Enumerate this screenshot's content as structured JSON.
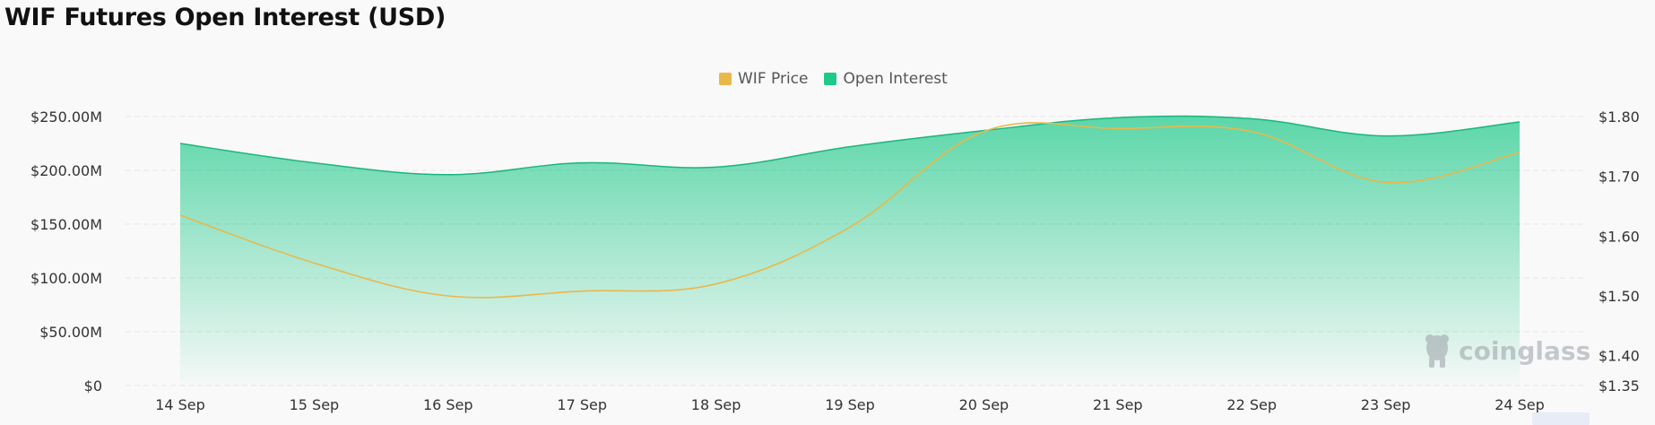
{
  "title": "WIF Futures Open Interest (USD)",
  "legend": [
    {
      "label": "WIF Price",
      "color": "#e8b84a"
    },
    {
      "label": "Open Interest",
      "color": "#1ec98a"
    }
  ],
  "watermark": "coinglass",
  "chart_data": {
    "type": "area",
    "title": "WIF Futures Open Interest (USD)",
    "x": [
      "14 Sep",
      "15 Sep",
      "16 Sep",
      "17 Sep",
      "18 Sep",
      "19 Sep",
      "20 Sep",
      "21 Sep",
      "22 Sep",
      "23 Sep",
      "24 Sep"
    ],
    "series": [
      {
        "name": "Open Interest",
        "axis": "left",
        "type": "area",
        "color": "#1ec98a",
        "values": [
          225000000,
          207000000,
          196000000,
          207000000,
          203000000,
          222000000,
          237000000,
          249000000,
          248000000,
          232000000,
          245000000
        ]
      },
      {
        "name": "WIF Price",
        "axis": "right",
        "type": "line",
        "color": "#e8b84a",
        "values": [
          1.635,
          1.555,
          1.5,
          1.508,
          1.52,
          1.615,
          1.775,
          1.78,
          1.775,
          1.69,
          1.74
        ]
      }
    ],
    "y_left": {
      "ylim": [
        0,
        250000000
      ],
      "ticks": [
        "$0",
        "$50.00M",
        "$100.00M",
        "$150.00M",
        "$200.00M",
        "$250.00M"
      ]
    },
    "y_right": {
      "ylim": [
        1.35,
        1.8
      ],
      "ticks": [
        "$1.35",
        "$1.40",
        "$1.50",
        "$1.60",
        "$1.70",
        "$1.80"
      ],
      "tick_values": [
        1.35,
        1.4,
        1.5,
        1.6,
        1.7,
        1.8
      ]
    },
    "grid": true,
    "legend_position": "top-center"
  }
}
